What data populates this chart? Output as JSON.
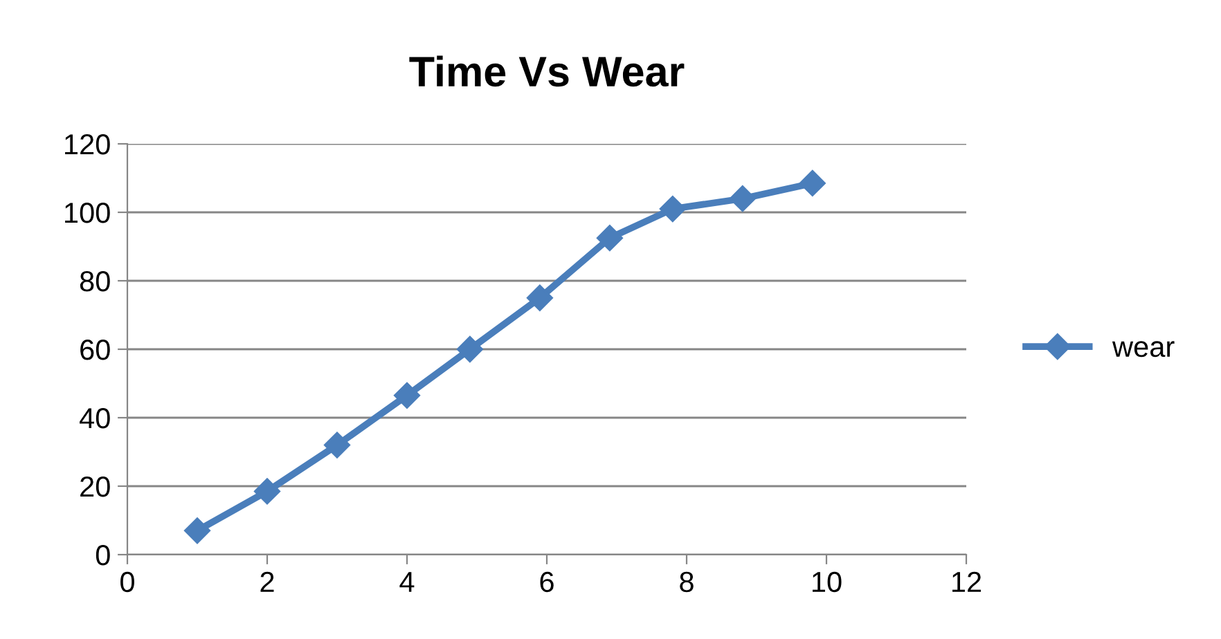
{
  "chart_data": {
    "type": "line",
    "title": "Time Vs Wear",
    "series": [
      {
        "name": "wear",
        "color": "#4a7ebb",
        "x": [
          1.0,
          2.0,
          3.0,
          4.0,
          4.9,
          5.9,
          6.9,
          7.8,
          8.8,
          9.8
        ],
        "values": [
          7,
          18.5,
          32,
          46.5,
          60,
          75,
          92.5,
          101,
          104,
          108.5
        ]
      }
    ],
    "xlim": [
      0,
      12
    ],
    "xticks": [
      0,
      2,
      4,
      6,
      8,
      10,
      12
    ],
    "ylim": [
      0,
      120
    ],
    "yticks": [
      0,
      20,
      40,
      60,
      80,
      100,
      120
    ],
    "grid": "y",
    "legend": "right",
    "marker": "diamond",
    "line_style": "solid"
  }
}
